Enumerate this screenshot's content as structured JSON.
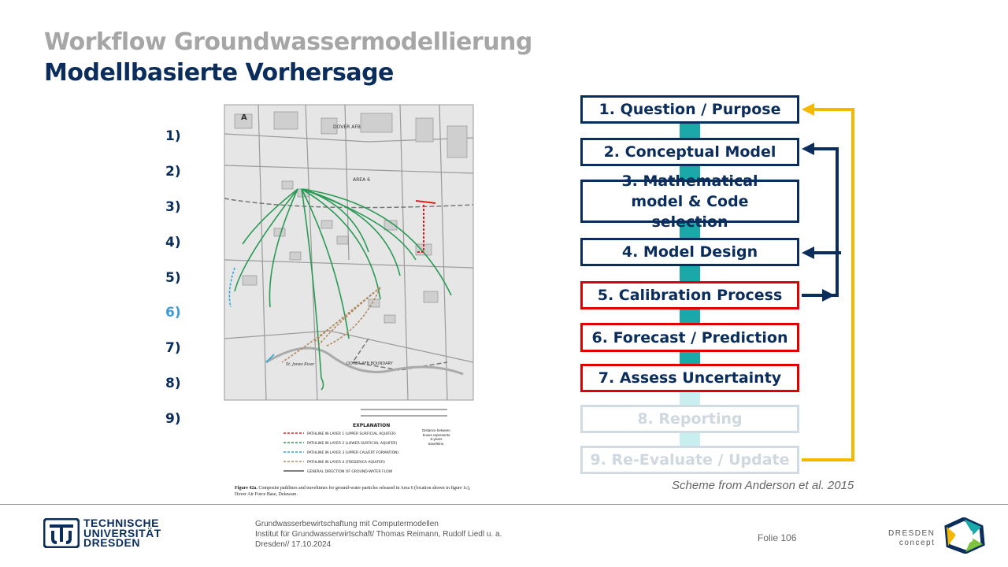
{
  "header": {
    "title": "Workflow Groundwassermodellierung",
    "subtitle": "Modellbasierte Vorhersage"
  },
  "steps": [
    "1)",
    "2)",
    "3)",
    "4)",
    "5)",
    "6)",
    "7)",
    "8)",
    "9)"
  ],
  "active_step_index": 5,
  "map": {
    "label_a": "A",
    "label_afb": "DOVER AFB",
    "label_area": "AREA 6",
    "label_boundary": "DOVER AFB BOUNDARY",
    "label_river": "St. Jones River",
    "explanation_title": "EXPLANATION",
    "legend": [
      {
        "text": "PATHLINE IN LAYER 1 (UPPER SURFICIAL AQUIFER)",
        "color": "#e02020"
      },
      {
        "text": "PATHLINE IN LAYER 2 (LOWER SURFICIAL AQUIFER)",
        "color": "#2a9a55"
      },
      {
        "text": "PATHLINE IN LAYER 3 (UPPER CALVERT FORMATION)",
        "color": "#2aa8d8"
      },
      {
        "text": "PATHLINE IN LAYER 4 (FREDERICA AQUIFER)",
        "color": "#b08a60"
      },
      {
        "text": "GENERAL DIRECTION OF GROUND-WATER FLOW",
        "color": "#333333"
      }
    ],
    "legend_note": "Distance between boxes represents 5-years traveltime.",
    "figure_caption_bold": "Figure 42a.",
    "figure_caption": "Composite pathlines and traveltimes for ground-water particles released in Area 6 (location shown in figure 1c), Dover Air Force Base, Delaware."
  },
  "workflow": [
    {
      "label": "1. Question  / Purpose",
      "style": "normal"
    },
    {
      "label": "2. Conceptual  Model",
      "style": "normal"
    },
    {
      "label": "3. Mathematical model & Code  selection",
      "style": "normal"
    },
    {
      "label": "4. Model Design",
      "style": "normal"
    },
    {
      "label": "5. Calibration Process",
      "style": "red"
    },
    {
      "label": "6. Forecast  / Prediction",
      "style": "red"
    },
    {
      "label": "7. Assess  Uncertainty",
      "style": "red"
    },
    {
      "label": "8. Reporting",
      "style": "faded"
    },
    {
      "label": "9. Re-Evaluate  / Update",
      "style": "faded"
    }
  ],
  "colors": {
    "navy": "#0b2d5c",
    "teal": "#1aa9a8",
    "red": "#e00000",
    "yellow": "#f5b800",
    "gray_title": "#a6a6a6"
  },
  "caption": "Scheme from Anderson et al. 2015",
  "footer": {
    "university_lines": [
      "TECHNISCHE",
      "UNIVERSITÄT",
      "DRESDEN"
    ],
    "info_lines": [
      "Grundwasserbewirtschaftung mit Computermodellen",
      "Institut für Grundwasserwirtschaft/ Thomas Reimann, Rudolf Liedl u. a.",
      "Dresden// 17.10.2024"
    ],
    "slide": "Folie 106",
    "dresden_concept": [
      "DRESDEN",
      "concept"
    ]
  }
}
